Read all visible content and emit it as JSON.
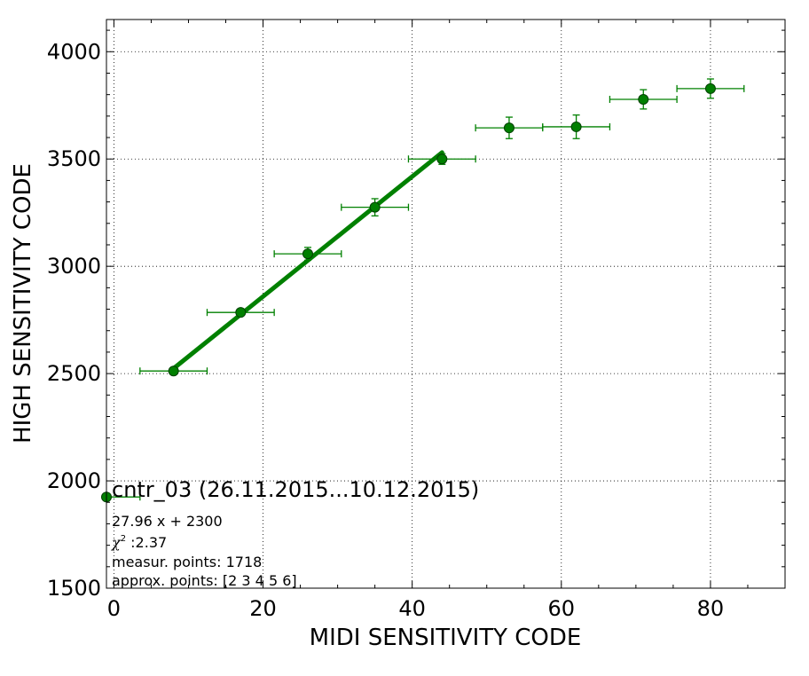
{
  "chart_data": {
    "type": "scatter",
    "xlabel": "MIDI SENSITIVITY CODE",
    "ylabel": "HIGH SENSITIVITY CODE",
    "xlim": [
      -1,
      90
    ],
    "ylim": [
      1500,
      4150
    ],
    "xticks": [
      0,
      20,
      40,
      60,
      80
    ],
    "yticks": [
      1500,
      2000,
      2500,
      3000,
      3500,
      4000
    ],
    "grid": true,
    "colors": {
      "series": "#008000",
      "marker": "#007f00",
      "edge": "#004000"
    },
    "series": [
      {
        "values": [
          {
            "x": -1,
            "y": 1925,
            "xerr": 4.5,
            "yerr": 0
          },
          {
            "x": 8,
            "y": 2512,
            "xerr": 4.5,
            "yerr": 10
          },
          {
            "x": 17,
            "y": 2785,
            "xerr": 4.5,
            "yerr": 15
          },
          {
            "x": 26,
            "y": 3058,
            "xerr": 4.5,
            "yerr": 30
          },
          {
            "x": 35,
            "y": 3275,
            "xerr": 4.5,
            "yerr": 40
          },
          {
            "x": 44,
            "y": 3500,
            "xerr": 4.5,
            "yerr": 25
          },
          {
            "x": 53,
            "y": 3645,
            "xerr": 4.5,
            "yerr": 50
          },
          {
            "x": 62,
            "y": 3650,
            "xerr": 4.5,
            "yerr": 55
          },
          {
            "x": 71,
            "y": 3778,
            "xerr": 4.5,
            "yerr": 45
          },
          {
            "x": 80,
            "y": 3828,
            "xerr": 4.5,
            "yerr": 45
          }
        ]
      }
    ],
    "fit": {
      "slope": 27.96,
      "intercept": 2300,
      "x_range": [
        8,
        44
      ]
    },
    "annotation": {
      "title": "cntr_03 (26.11.2015...10.12.2015)",
      "equation": "27.96 x + 2300",
      "chi_symbol": "χ",
      "chi_exp": "2",
      "chi_value": " :2.37",
      "points": "measur. points: 1718",
      "approx": "approx. points: [2 3 4 5 6]"
    }
  }
}
